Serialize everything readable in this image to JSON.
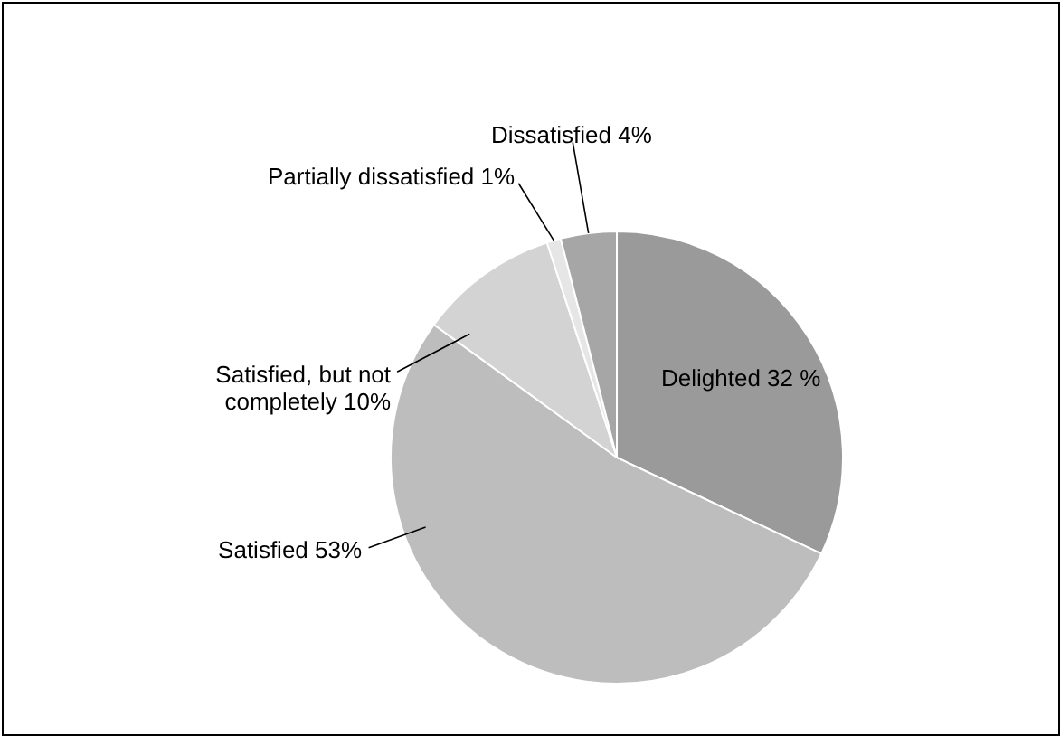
{
  "chart_data": {
    "type": "pie",
    "categories": [
      "Delighted",
      "Satisfied",
      "Satisfied, but not completely",
      "Partially dissatisfied",
      "Dissatisfied"
    ],
    "values": [
      32,
      53,
      10,
      1,
      4
    ],
    "value_labels": [
      "32 %",
      "53%",
      "10%",
      "1%",
      "4%"
    ],
    "colors": [
      "#9a9a9a",
      "#bdbdbd",
      "#d3d3d3",
      "#e6e6e6",
      "#a6a6a6"
    ],
    "legend": false
  }
}
